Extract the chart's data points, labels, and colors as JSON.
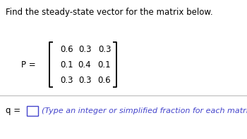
{
  "title": "Find the steady-state vector for the matrix below.",
  "title_fontsize": 8.5,
  "title_color": "#000000",
  "P_label": "P =",
  "matrix_rows": [
    [
      "0.6",
      "0.3",
      "0.3"
    ],
    [
      "0.1",
      "0.4",
      "0.1"
    ],
    [
      "0.3",
      "0.3",
      "0.6"
    ]
  ],
  "q_label": "q =",
  "q_hint": "(Type an integer or simplified fraction for each matrix element.)",
  "q_hint_color": "#4444cc",
  "divider_color": "#bbbbbb",
  "bg_color": "#ffffff",
  "matrix_fontsize": 8.5,
  "label_fontsize": 8.5,
  "hint_fontsize": 8.0,
  "bracket_color": "#000000"
}
